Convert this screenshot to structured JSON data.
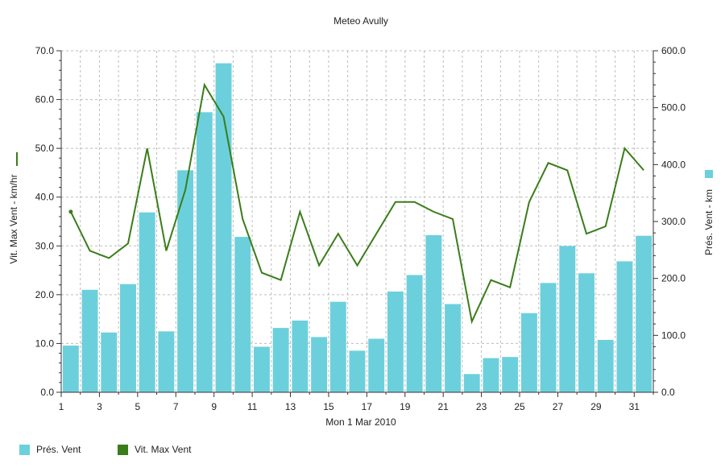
{
  "chart_data": {
    "type": "bar+line",
    "title": "Meteo  Avully",
    "xlabel": "Mon 1 Mar 2010",
    "x": [
      1,
      2,
      3,
      4,
      5,
      6,
      7,
      8,
      9,
      10,
      11,
      12,
      13,
      14,
      15,
      16,
      17,
      18,
      19,
      20,
      21,
      22,
      23,
      24,
      25,
      26,
      27,
      28,
      29,
      30,
      31,
      32
    ],
    "x_tick_labels": [
      "1",
      "3",
      "5",
      "7",
      "9",
      "11",
      "13",
      "15",
      "17",
      "19",
      "21",
      "23",
      "25",
      "27",
      "29",
      "31"
    ],
    "left_axis": {
      "label": "Vit. Max Vent - km/hr",
      "ylim": [
        0,
        70
      ],
      "ticks": [
        "0.0",
        "10.0",
        "20.0",
        "30.0",
        "40.0",
        "50.0",
        "60.0",
        "70.0"
      ]
    },
    "right_axis": {
      "label": "Prés. Vent - km",
      "ylim": [
        0,
        600
      ],
      "ticks": [
        "0.0",
        "100.0",
        "200.0",
        "300.0",
        "400.0",
        "500.0",
        "600.0"
      ]
    },
    "series": [
      {
        "name": "Prés. Vent",
        "type": "bar",
        "axis": "right",
        "color": "#6cd0dc",
        "x": [
          1,
          2,
          3,
          4,
          5,
          6,
          7,
          8,
          9,
          10,
          11,
          12,
          13,
          14,
          15,
          16,
          17,
          18,
          19,
          20,
          21,
          22,
          23,
          24,
          25,
          26,
          27,
          28,
          29,
          30,
          31
        ],
        "values": [
          82,
          180,
          105,
          190,
          316,
          107,
          390,
          492,
          578,
          273,
          80,
          113,
          126,
          97,
          159,
          73,
          94,
          177,
          206,
          276,
          155,
          32,
          60,
          62,
          139,
          192,
          257,
          209,
          92,
          230,
          275
        ]
      },
      {
        "name": "Vit. Max Vent",
        "type": "line",
        "axis": "left",
        "color": "#3a7d1a",
        "x": [
          1.5,
          2.5,
          3.5,
          4.5,
          5.5,
          6.5,
          7.5,
          8.5,
          9.5,
          10.5,
          11.5,
          12.5,
          13.5,
          14.5,
          15.5,
          16.5,
          17.5,
          18.5,
          19.5,
          20.5,
          21.5,
          22.5,
          23.5,
          24.5,
          25.5,
          26.5,
          27.5,
          28.5,
          29.5,
          30.5,
          31.5
        ],
        "values": [
          37.0,
          29.0,
          27.5,
          30.5,
          50.0,
          29.0,
          41.5,
          63.0,
          56.5,
          35.5,
          24.5,
          23.0,
          37.0,
          26.0,
          32.5,
          26.0,
          32.5,
          39.0,
          39.0,
          37.0,
          35.5,
          14.5,
          23.0,
          21.5,
          39.0,
          47.0,
          45.5,
          32.5,
          34.0,
          50.0,
          45.5
        ]
      }
    ],
    "grid": true,
    "legend": "bottom-left"
  }
}
